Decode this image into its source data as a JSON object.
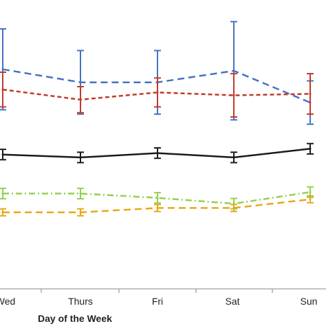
{
  "chart_data": {
    "type": "line",
    "categories": [
      "Wed",
      "Thurs",
      "Fri",
      "Sat",
      "Sun"
    ],
    "category_labels_shown": [
      "Wed",
      "Thurs",
      "Fri",
      "Sat",
      "Sun"
    ],
    "xlabel": "Day of the Week",
    "ylabel": "",
    "title": "",
    "ylim": [
      0,
      100
    ],
    "grid": false,
    "series": [
      {
        "color": "#4472C4",
        "dash": "long-dash",
        "values": [
          76,
          71.5,
          71.5,
          75.5,
          64.5
        ],
        "errors": [
          14,
          11,
          11,
          17,
          7.5
        ]
      },
      {
        "color": "#C0392B",
        "dash": "short-dash",
        "values": [
          69,
          65.5,
          68,
          67,
          67.5
        ],
        "errors": [
          6,
          4.5,
          5,
          7.5,
          7
        ]
      },
      {
        "color": "#1a1a1a",
        "dash": "solid",
        "values": [
          46.5,
          45.5,
          47,
          45.5,
          48.5
        ],
        "errors": [
          1.8,
          1.8,
          1.8,
          1.8,
          1.8
        ]
      },
      {
        "color": "#92D050",
        "dash": "dash-dot",
        "values": [
          33,
          33,
          31.5,
          29.5,
          33.5
        ],
        "errors": [
          1.8,
          1.8,
          1.8,
          1.8,
          1.8
        ]
      },
      {
        "color": "#E6A817",
        "dash": "long-dash",
        "values": [
          26.5,
          26.5,
          28,
          28,
          31
        ],
        "errors": [
          1.2,
          1.2,
          1.2,
          1.2,
          1.2
        ]
      }
    ]
  }
}
